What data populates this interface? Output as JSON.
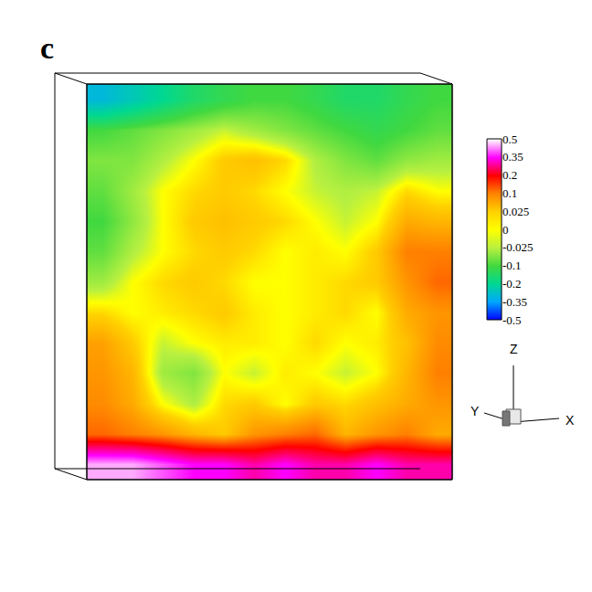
{
  "chart_data": {
    "type": "heatmap",
    "panel_label": "c",
    "tick_labels": false,
    "axis_labels": {
      "x": "X",
      "y": "Y",
      "z": "Z"
    },
    "cells": [
      [
        0.45,
        0.45,
        0.4,
        0.35,
        0.35,
        0.3,
        0.35,
        0.3,
        0.3,
        0.35,
        0.3,
        0.3
      ],
      [
        0.12,
        0.1,
        0.08,
        0.05,
        0.03,
        0.08,
        0.1,
        0.12,
        0.05,
        0.08,
        0.1,
        0.06
      ],
      [
        0.09,
        0.06,
        0.0,
        -0.03,
        0.02,
        0.03,
        0.0,
        0.03,
        0.02,
        0.04,
        0.06,
        0.08
      ],
      [
        0.08,
        0.05,
        -0.04,
        -0.06,
        0.0,
        -0.02,
        0.01,
        0.0,
        -0.02,
        0.0,
        0.05,
        0.1
      ],
      [
        0.07,
        0.03,
        -0.02,
        0.0,
        0.01,
        0.01,
        0.0,
        0.02,
        0.0,
        0.01,
        0.04,
        0.09
      ],
      [
        0.02,
        0.0,
        0.01,
        0.02,
        0.03,
        0.01,
        0.0,
        0.01,
        0.02,
        0.0,
        0.06,
        0.08
      ],
      [
        -0.04,
        0.0,
        0.02,
        0.03,
        0.02,
        0.0,
        0.0,
        0.01,
        0.02,
        0.03,
        0.08,
        0.12
      ],
      [
        -0.08,
        -0.03,
        0.0,
        0.02,
        0.03,
        0.02,
        0.0,
        0.01,
        0.0,
        0.03,
        0.1,
        0.1
      ],
      [
        -0.1,
        -0.05,
        0.0,
        0.03,
        0.04,
        0.03,
        0.02,
        0.0,
        -0.02,
        0.0,
        0.06,
        0.05
      ],
      [
        -0.08,
        -0.04,
        0.0,
        0.02,
        0.03,
        0.02,
        0.0,
        -0.02,
        -0.03,
        -0.02,
        0.02,
        0.0
      ],
      [
        -0.06,
        -0.06,
        -0.03,
        0.0,
        0.03,
        0.04,
        0.02,
        -0.03,
        -0.06,
        -0.08,
        -0.05,
        -0.04
      ],
      [
        -0.1,
        -0.08,
        -0.06,
        -0.04,
        -0.02,
        -0.04,
        -0.06,
        -0.08,
        -0.1,
        -0.12,
        -0.1,
        -0.08
      ],
      [
        -0.3,
        -0.25,
        -0.2,
        -0.15,
        -0.12,
        -0.1,
        -0.1,
        -0.12,
        -0.15,
        -0.15,
        -0.12,
        -0.1
      ]
    ],
    "colorbar": {
      "levels": [
        -0.5,
        -0.35,
        -0.2,
        -0.1,
        -0.025,
        0,
        0.025,
        0.1,
        0.2,
        0.35,
        0.5
      ],
      "colors": [
        "#0000ff",
        "#00a8ff",
        "#00d890",
        "#40d840",
        "#b8f040",
        "#ffff00",
        "#ffd000",
        "#ff8000",
        "#ff0000",
        "#ff00ff",
        "#ffffff"
      ]
    }
  }
}
